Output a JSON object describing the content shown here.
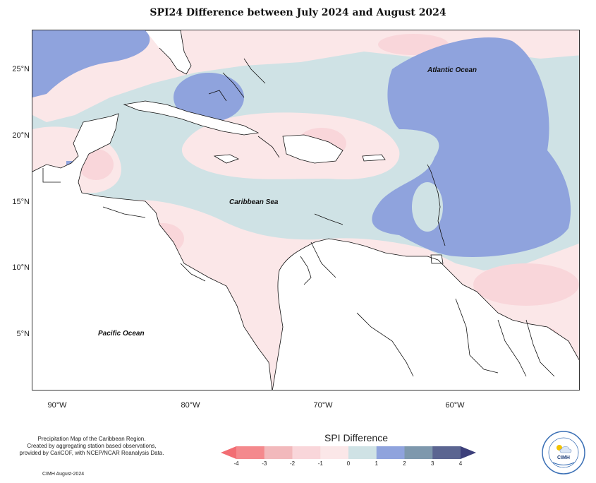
{
  "title": "SPI24 Difference between July 2024 and August 2024",
  "map": {
    "lat_labels": [
      "25°N",
      "20°N",
      "15°N",
      "10°N",
      "5°N"
    ],
    "lon_labels": [
      "90°W",
      "80°W",
      "70°W",
      "60°W"
    ],
    "oceans": {
      "atlantic": "Atlantic Ocean",
      "caribbean": "Caribbean Sea",
      "pacific": "Pacific Ocean"
    },
    "colors": {
      "light_blue": "#cfe2e5",
      "medium_blue": "#8fa3dd",
      "dark_blue": "#7d8ed8",
      "light_pink": "#fbe7e8",
      "pink": "#f9d6da",
      "land": "#ffffff"
    }
  },
  "credits": {
    "line1": "Precipitation Map of the Caribbean Region.",
    "line2": "Created by aggregating station based observations,",
    "line3": "provided by CariCOF, with NCEP/NCAR Reanalysis Data.",
    "date": "CIMH August-2024"
  },
  "legend": {
    "title": "SPI Difference",
    "ticks": [
      "-4",
      "-3",
      "-2",
      "-1",
      "0",
      "1",
      "2",
      "3",
      "4"
    ],
    "colors": [
      "#f4898d",
      "#f2b9bc",
      "#f9d6da",
      "#fbe7e8",
      "#cfe2e5",
      "#8fa3dd",
      "#7e98ad",
      "#5b6591"
    ],
    "arrow_left_color": "#f26d73",
    "arrow_right_color": "#3c3f7a"
  },
  "logo": {
    "name": "CIMH",
    "ring_text": "Caribbean Institute for Meteorology and Hydrology"
  }
}
